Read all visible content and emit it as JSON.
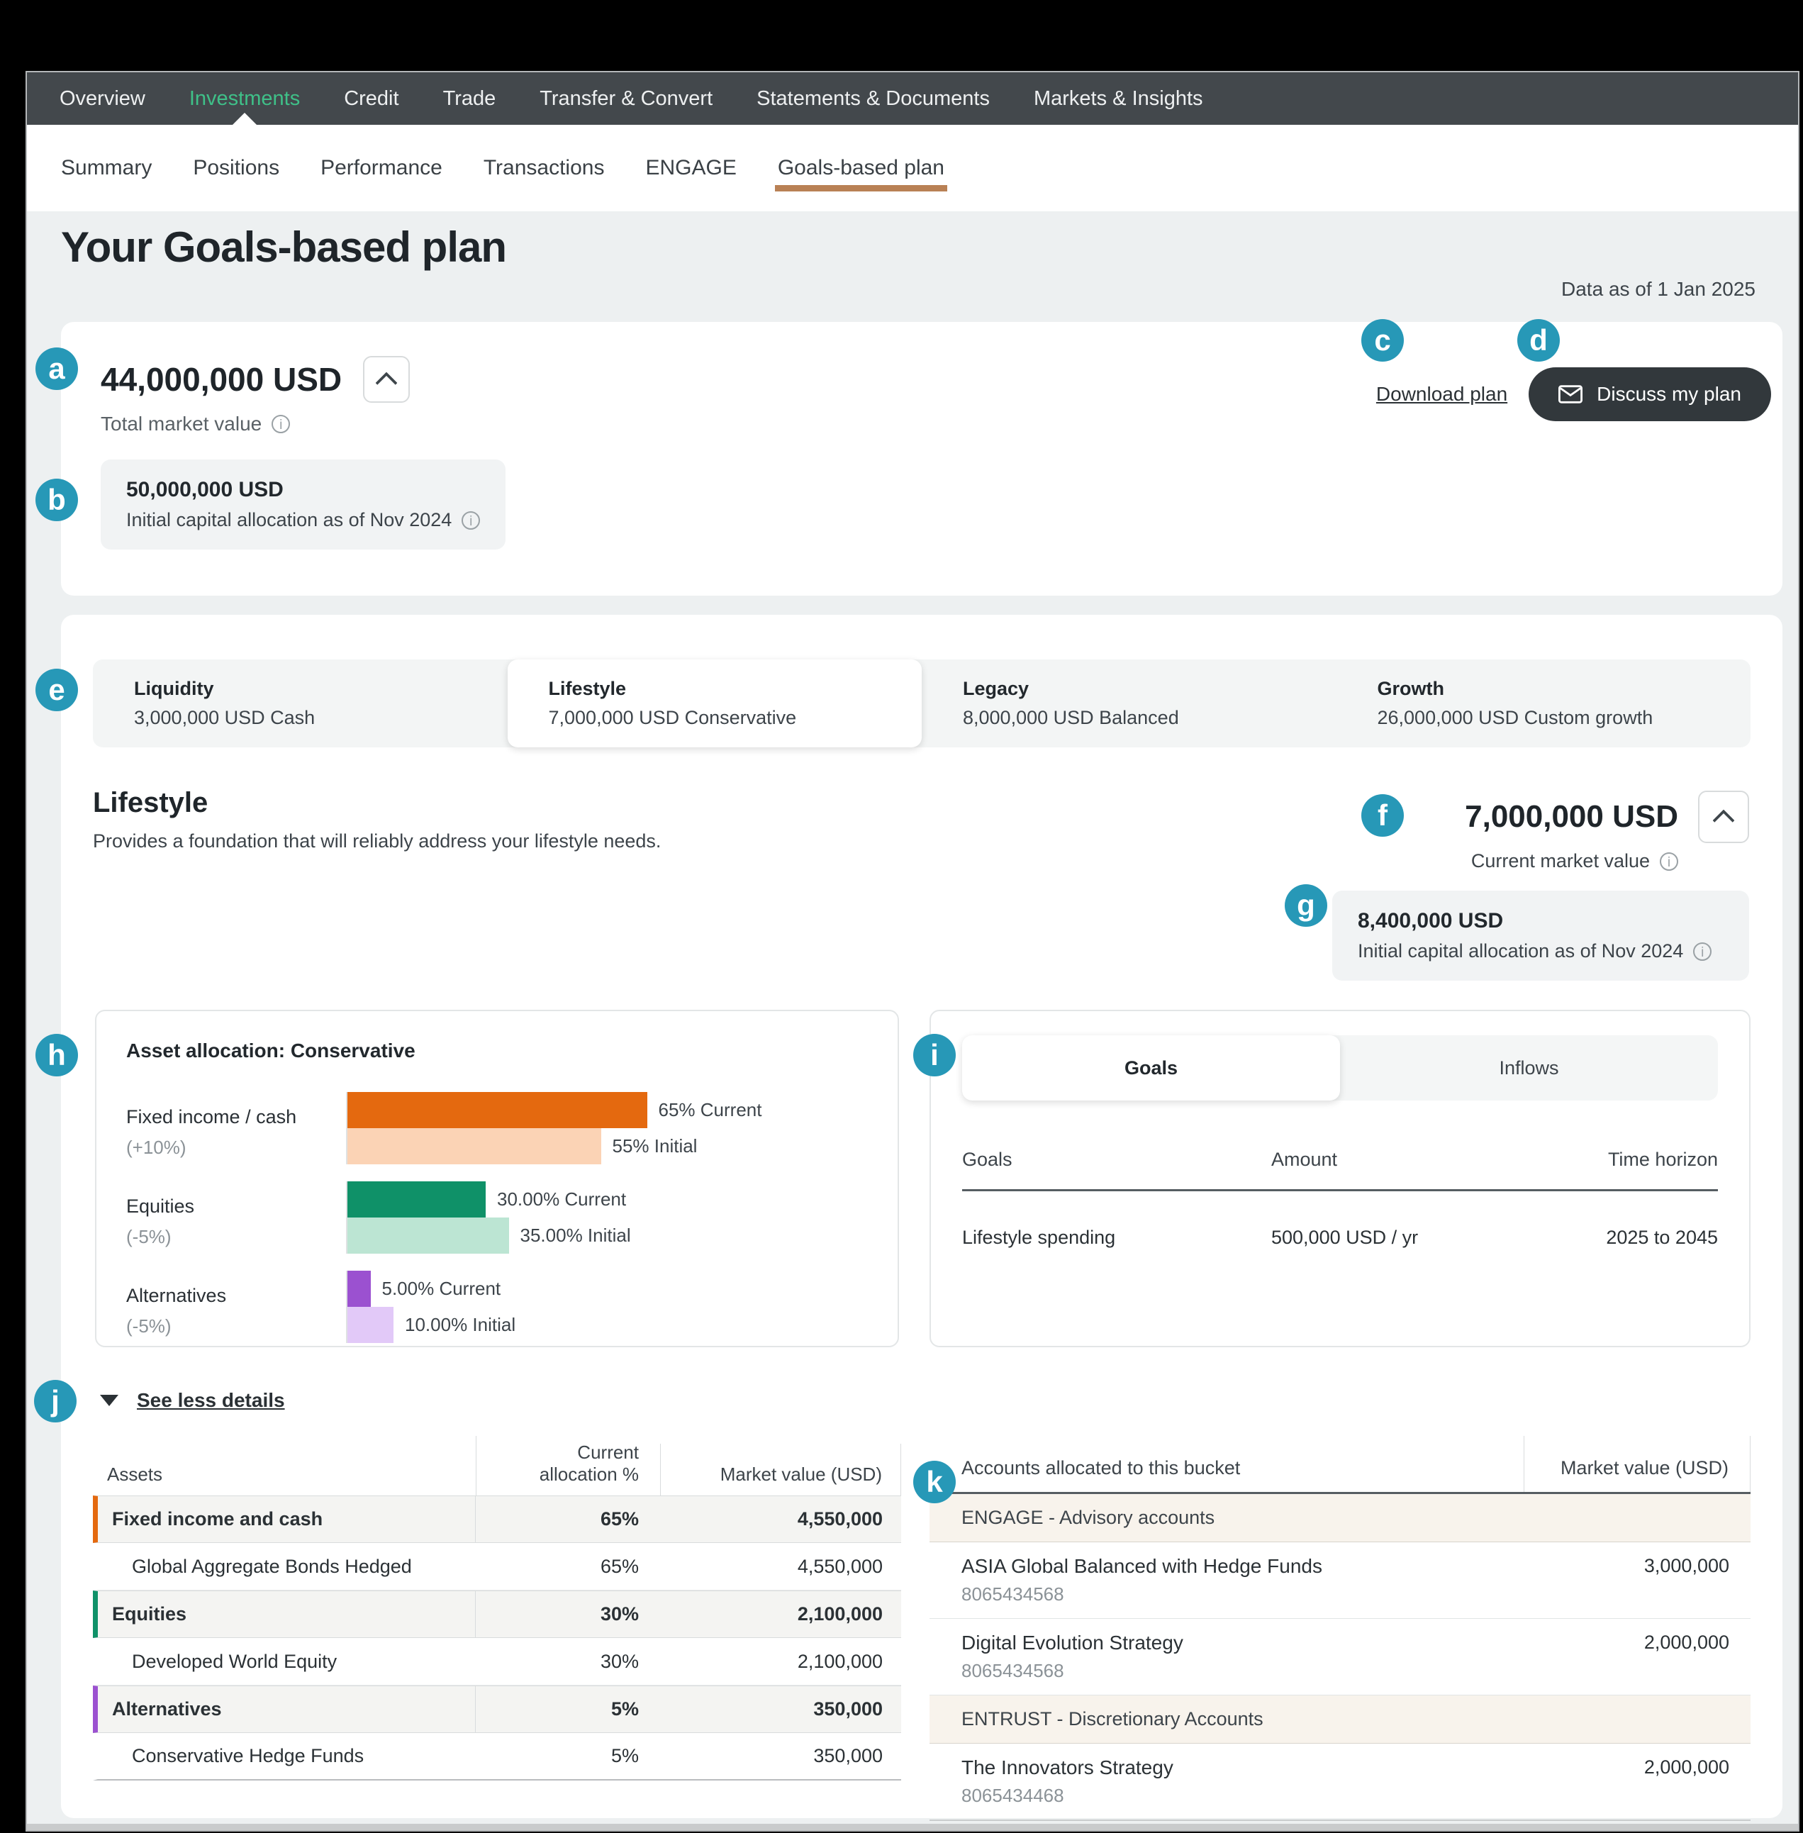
{
  "colors": {
    "marker": "#2798b7",
    "nav_active": "#3fc088",
    "tab_underline": "#b98155"
  },
  "nav": {
    "items": [
      {
        "label": "Overview"
      },
      {
        "label": "Investments",
        "_class": "active"
      },
      {
        "label": "Credit"
      },
      {
        "label": "Trade"
      },
      {
        "label": "Transfer & Convert"
      },
      {
        "label": "Statements & Documents"
      },
      {
        "label": "Markets & Insights"
      }
    ]
  },
  "subnav": {
    "items": [
      {
        "label": "Summary"
      },
      {
        "label": "Positions"
      },
      {
        "label": "Performance"
      },
      {
        "label": "Transactions"
      },
      {
        "label": "ENGAGE"
      },
      {
        "label": "Goals-based plan",
        "_class": "active"
      }
    ]
  },
  "page": {
    "title": "Your Goals-based plan",
    "data_as_of": "Data as of 1 Jan 2025"
  },
  "summary": {
    "total_value": "44,000,000 USD",
    "total_label": "Total market value",
    "initial_value": "50,000,000 USD",
    "initial_label": "Initial capital allocation as of Nov 2024",
    "download_label": "Download plan",
    "discuss_label": "Discuss my plan"
  },
  "buckets": [
    {
      "name": "Liquidity",
      "detail": "3,000,000 USD Cash"
    },
    {
      "name": "Lifestyle",
      "detail": "7,000,000 USD Conservative",
      "_class": "active"
    },
    {
      "name": "Legacy",
      "detail": "8,000,000 USD Balanced"
    },
    {
      "name": "Growth",
      "detail": "26,000,000 USD Custom growth"
    }
  ],
  "lifestyle": {
    "title": "Lifestyle",
    "description": "Provides a foundation that will reliably address your lifestyle needs.",
    "current_value": "7,000,000 USD",
    "current_label": "Current market value",
    "initial_value": "8,400,000 USD",
    "initial_label": "Initial capital allocation as of Nov 2024"
  },
  "chart_data": {
    "type": "bar",
    "orientation": "horizontal",
    "title": "Asset allocation: Conservative",
    "categories": [
      "Fixed income / cash",
      "Equities",
      "Alternatives"
    ],
    "deltas": [
      "(+10%)",
      "(-5%)",
      "(-5%)"
    ],
    "series": [
      {
        "name": "Current",
        "values": [
          65,
          30,
          5
        ]
      },
      {
        "name": "Initial",
        "values": [
          55,
          35,
          10
        ]
      }
    ],
    "xlim": [
      0,
      100
    ],
    "grid": false,
    "legend": "inline value labels",
    "rows": [
      {
        "label": "Fixed income / cash",
        "delta": "(+10%)",
        "current_pct": 65,
        "initial_pct": 55,
        "current_label": "65% Current",
        "initial_label": "55% Initial",
        "current_color": "#e4690f",
        "initial_color": "#fbd3b5"
      },
      {
        "label": "Equities",
        "delta": "(-5%)",
        "current_pct": 30,
        "initial_pct": 35,
        "current_label": "30.00% Current",
        "initial_label": "35.00% Initial",
        "current_color": "#0f9168",
        "initial_color": "#bce5d3"
      },
      {
        "label": "Alternatives",
        "delta": "(-5%)",
        "current_pct": 5,
        "initial_pct": 10,
        "current_label": "5.00% Current",
        "initial_label": "10.00% Initial",
        "current_color": "#9b51d0",
        "initial_color": "#e2c9f8"
      }
    ]
  },
  "goals_panel": {
    "tabs": [
      "Goals",
      "Inflows"
    ],
    "active_tab": "Goals",
    "headers": [
      "Goals",
      "Amount",
      "Time horizon"
    ],
    "rows": [
      {
        "goal": "Lifestyle spending",
        "amount": "500,000 USD / yr",
        "horizon": "2025 to 2045"
      }
    ]
  },
  "details": {
    "toggle_label": "See less details"
  },
  "assets_table": {
    "headers": [
      "Assets",
      "Current allocation %",
      "Market value (USD)"
    ],
    "rows": [
      {
        "name": "Fixed income and cash",
        "alloc": "65%",
        "value": "4,550,000",
        "accent": "#e4690f",
        "_class": "cat"
      },
      {
        "name": "Global Aggregate Bonds Hedged",
        "alloc": "65%",
        "value": "4,550,000"
      },
      {
        "name": "Equities",
        "alloc": "30%",
        "value": "2,100,000",
        "accent": "#0f9168",
        "_class": "cat"
      },
      {
        "name": "Developed World Equity",
        "alloc": "30%",
        "value": "2,100,000"
      },
      {
        "name": "Alternatives",
        "alloc": "5%",
        "value": "350,000",
        "accent": "#9b51d0",
        "_class": "cat"
      },
      {
        "name": "Conservative Hedge Funds",
        "alloc": "5%",
        "value": "350,000"
      }
    ]
  },
  "accounts_table": {
    "headers": [
      "Accounts allocated to this bucket",
      "Market value (USD)"
    ],
    "rows": [
      {
        "name": "ENGAGE - Advisory accounts",
        "number": "",
        "value": "",
        "_class": "group"
      },
      {
        "name": "ASIA Global Balanced with Hedge Funds",
        "number": "8065434568",
        "value": "3,000,000"
      },
      {
        "name": "Digital Evolution Strategy",
        "number": "8065434568",
        "value": "2,000,000"
      },
      {
        "name": "ENTRUST - Discretionary Accounts",
        "number": "",
        "value": "",
        "_class": "group"
      },
      {
        "name": "The Innovators Strategy",
        "number": "8065434468",
        "value": "2,000,000"
      }
    ]
  },
  "markers": [
    "a",
    "b",
    "c",
    "d",
    "e",
    "f",
    "g",
    "h",
    "i",
    "j",
    "k"
  ]
}
